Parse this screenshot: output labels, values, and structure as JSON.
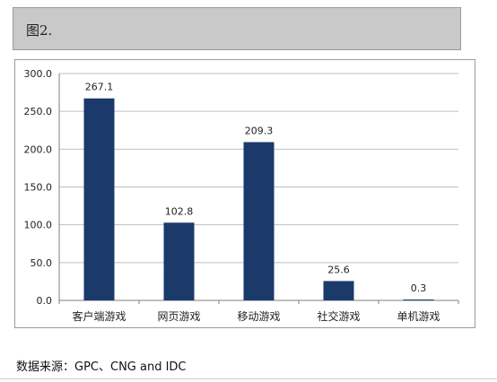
{
  "header": {
    "title": "图2."
  },
  "source_note": "数据来源：GPC、CNG and IDC",
  "colors": {
    "bar": "#1b3a6b",
    "grid": "#bfbfbf",
    "axis": "#7f7f7f"
  },
  "chart_data": {
    "type": "bar",
    "categories": [
      "客户端游戏",
      "网页游戏",
      "移动游戏",
      "社交游戏",
      "单机游戏"
    ],
    "values": [
      267.1,
      102.8,
      209.3,
      25.6,
      0.3
    ],
    "value_labels": [
      "267.1",
      "102.8",
      "209.3",
      "25.6",
      "0.3"
    ],
    "yticks": [
      "0.0",
      "50.0",
      "100.0",
      "150.0",
      "200.0",
      "250.0",
      "300.0"
    ],
    "ylim": [
      0,
      300
    ],
    "title": "",
    "xlabel": "",
    "ylabel": "",
    "grid": true
  }
}
